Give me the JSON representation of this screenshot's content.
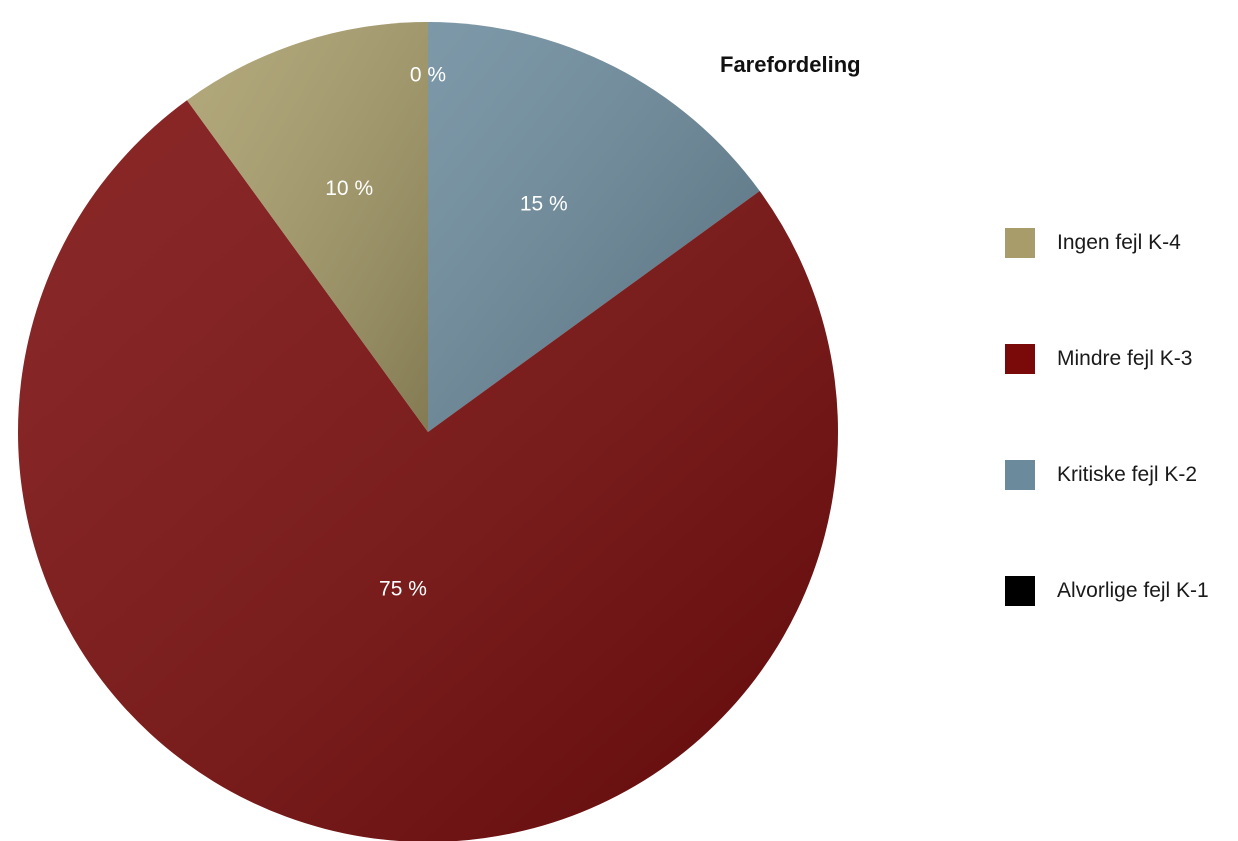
{
  "chart_data": {
    "type": "pie",
    "title": "Farefordeling",
    "categories": [
      "Alvorlige fejl K-1",
      "Kritiske fejl K-2",
      "Mindre fejl K-3",
      "Ingen fejl K-4"
    ],
    "values": [
      0,
      15,
      75,
      10
    ],
    "data_labels": [
      "0 %",
      "15 %",
      "75 %",
      "10 %"
    ],
    "colors": [
      "#000000",
      "#6b8a9c",
      "#7a0a0a",
      "#a89d6a"
    ],
    "legend": {
      "placement": "right",
      "entries": [
        {
          "label": "Ingen fejl K-4",
          "color": "#a89d6a"
        },
        {
          "label": "Mindre fejl K-3",
          "color": "#7a0a0a"
        },
        {
          "label": "Kritiske fejl K-2",
          "color": "#6b8a9c"
        },
        {
          "label": "Alvorlige fejl K-1",
          "color": "#000000"
        }
      ]
    }
  }
}
